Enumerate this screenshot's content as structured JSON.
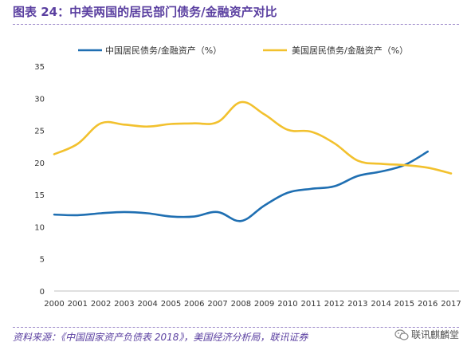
{
  "title": "图表 24：中美两国的居民部门债务/金融资产对比",
  "source": "资料来源：《中国国家资产负债表 2018》，美国经济分析局，联讯证券",
  "brand": "联讯麒麟堂",
  "chart_data": {
    "type": "line",
    "title": "图表 24：中美两国的居民部门债务/金融资产对比",
    "x": [
      "2000",
      "2001",
      "2002",
      "2003",
      "2004",
      "2005",
      "2006",
      "2007",
      "2008",
      "2009",
      "2010",
      "2011",
      "2012",
      "2013",
      "2014",
      "2015",
      "2016",
      "2017"
    ],
    "ylim": [
      0,
      35
    ],
    "yticks": [
      0,
      5,
      10,
      15,
      20,
      25,
      30,
      35
    ],
    "grid": false,
    "legend": "top",
    "series": [
      {
        "name": "中国居民债务/金融资产（%）",
        "color": "#1f6fb2",
        "values": [
          11.9,
          11.8,
          12.1,
          12.3,
          12.1,
          11.6,
          11.6,
          12.3,
          10.9,
          13.3,
          15.3,
          15.9,
          16.3,
          17.9,
          18.6,
          19.6,
          21.7,
          null
        ]
      },
      {
        "name": "美国居民债务/金融资产（%）",
        "color": "#f2c12e",
        "values": [
          21.3,
          22.9,
          26.1,
          25.9,
          25.6,
          26.0,
          26.1,
          26.3,
          29.4,
          27.5,
          25.1,
          24.8,
          23.0,
          20.3,
          19.8,
          19.6,
          19.2,
          18.3
        ]
      }
    ]
  }
}
